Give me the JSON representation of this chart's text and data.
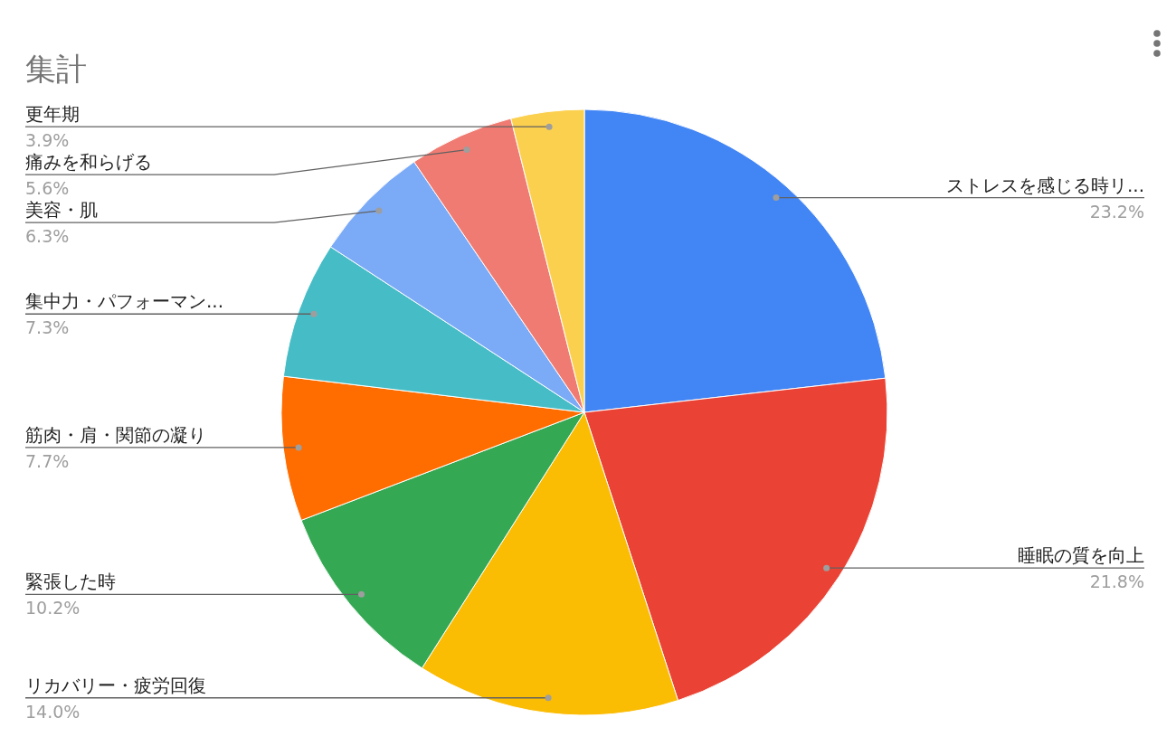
{
  "chart_data": {
    "type": "pie",
    "title": "集計",
    "categories": [
      "ストレスを感じる時リ...",
      "睡眠の質を向上",
      "リカバリー・疲労回復",
      "緊張した時",
      "筋肉・肩・関節の凝り",
      "集中力・パフォーマン...",
      "美容・肌",
      "痛みを和らげる",
      "更年期"
    ],
    "values": [
      23.2,
      21.8,
      14.0,
      10.2,
      7.7,
      7.3,
      6.3,
      5.6,
      3.9
    ],
    "value_labels": [
      "23.2%",
      "21.8%",
      "14.0%",
      "10.2%",
      "7.7%",
      "7.3%",
      "6.3%",
      "5.6%",
      "3.9%"
    ],
    "colors": [
      "#4285f4",
      "#ea4335",
      "#fbbc04",
      "#34a853",
      "#ff6d01",
      "#46bdc6",
      "#7baaf7",
      "#f07b72",
      "#fcd04f"
    ],
    "legend": false
  }
}
